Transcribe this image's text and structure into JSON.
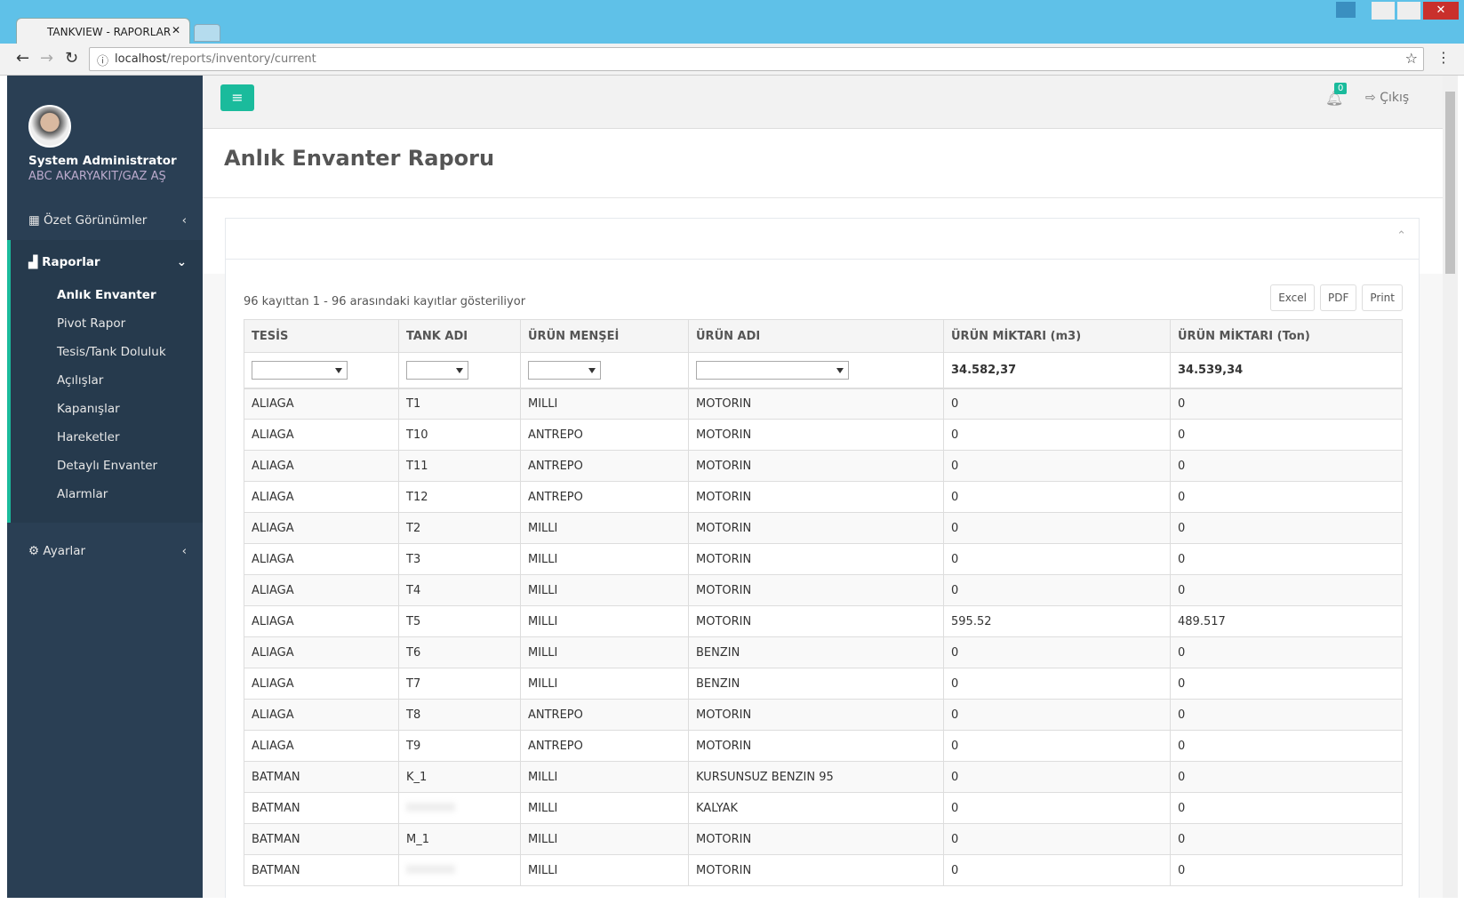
{
  "browser": {
    "tab_title": "TANKVIEW - RAPORLAR",
    "url_host": "localhost",
    "url_path": "/reports/inventory/current"
  },
  "topbar": {
    "notification_count": "0",
    "logout": "Çıkış"
  },
  "sidebar": {
    "user_name": "System Administrator",
    "company": "ABC AKARYAKIT/GAZ AŞ",
    "menu": [
      "Özet Görünümler",
      "Raporlar",
      "Ayarlar"
    ],
    "submenu": [
      "Anlık Envanter",
      "Pivot Rapor",
      "Tesis/Tank Doluluk",
      "Açılışlar",
      "Kapanışlar",
      "Hareketler",
      "Detaylı Envanter",
      "Alarmlar"
    ]
  },
  "page": {
    "title": "Anlık Envanter Raporu",
    "info": "96 kayıttan 1 - 96 arasındaki kayıtlar gösteriliyor",
    "buttons": [
      "Excel",
      "PDF",
      "Print"
    ]
  },
  "table": {
    "headers": [
      "TESİS",
      "TANK ADI",
      "ÜRÜN MENŞEİ",
      "ÜRÜN ADI",
      "ÜRÜN MİKTARI (m3)",
      "ÜRÜN MİKTARI (Ton)"
    ],
    "totals": [
      "34.582,37",
      "34.539,34"
    ],
    "rows": [
      [
        "ALIAGA",
        "T1",
        "MILLI",
        "MOTORIN",
        "0",
        "0"
      ],
      [
        "ALIAGA",
        "T10",
        "ANTREPO",
        "MOTORIN",
        "0",
        "0"
      ],
      [
        "ALIAGA",
        "T11",
        "ANTREPO",
        "MOTORIN",
        "0",
        "0"
      ],
      [
        "ALIAGA",
        "T12",
        "ANTREPO",
        "MOTORIN",
        "0",
        "0"
      ],
      [
        "ALIAGA",
        "T2",
        "MILLI",
        "MOTORIN",
        "0",
        "0"
      ],
      [
        "ALIAGA",
        "T3",
        "MILLI",
        "MOTORIN",
        "0",
        "0"
      ],
      [
        "ALIAGA",
        "T4",
        "MILLI",
        "MOTORIN",
        "0",
        "0"
      ],
      [
        "ALIAGA",
        "T5",
        "MILLI",
        "MOTORIN",
        "595.52",
        "489.517"
      ],
      [
        "ALIAGA",
        "T6",
        "MILLI",
        "BENZIN",
        "0",
        "0"
      ],
      [
        "ALIAGA",
        "T7",
        "MILLI",
        "BENZIN",
        "0",
        "0"
      ],
      [
        "ALIAGA",
        "T8",
        "ANTREPO",
        "MOTORIN",
        "0",
        "0"
      ],
      [
        "ALIAGA",
        "T9",
        "ANTREPO",
        "MOTORIN",
        "0",
        "0"
      ],
      [
        "BATMAN",
        "K_1",
        "MILLI",
        "KURSUNSUZ BENZIN 95",
        "0",
        "0"
      ],
      [
        "BATMAN",
        null,
        "MILLI",
        "KALYAK",
        "0",
        "0"
      ],
      [
        "BATMAN",
        "M_1",
        "MILLI",
        "MOTORIN",
        "0",
        "0"
      ],
      [
        "BATMAN",
        null,
        "MILLI",
        "MOTORIN",
        "0",
        "0"
      ]
    ]
  }
}
